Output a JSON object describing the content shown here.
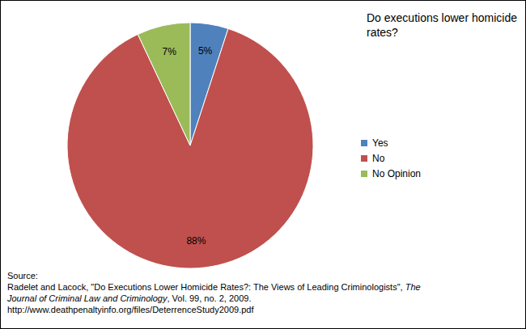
{
  "chart_data": {
    "type": "pie",
    "title": "Do executions lower homicide rates?",
    "categories": [
      "Yes",
      "No",
      "No Opinion"
    ],
    "values": [
      5,
      88,
      7
    ],
    "value_labels": [
      "5%",
      "88%",
      "7%"
    ],
    "colors": [
      "#4f81bd",
      "#c0504d",
      "#9bbb59"
    ],
    "data_labels": true,
    "legend": "right",
    "annotations": [
      "Source:",
      "Radelet and Lacock, \"Do Executions Lower Homicide Rates?: The Views of Leading Criminologists\", ",
      "The Journal of Criminal Law and Criminology",
      ", Vol. 99, no. 2, 2009.  http://www.deathpenaltyinfo.org/files/DeterrenceStudy2009.pdf"
    ]
  }
}
